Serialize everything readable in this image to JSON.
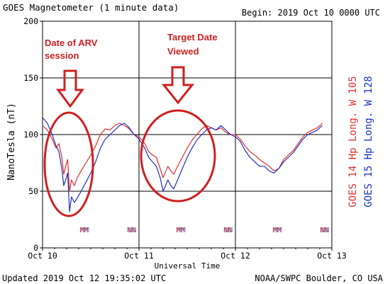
{
  "chart_data": {
    "type": "line",
    "title": "GOES Magnetometer (1 minute data)",
    "begin_label": "Begin:  2019 Oct 10 0000 UTC",
    "xlabel": "Universal Time",
    "ylabel": "NanoTesla (nT)",
    "ylim": [
      0,
      200
    ],
    "yticks": [
      0,
      50,
      100,
      150,
      200
    ],
    "xlim": [
      0,
      3
    ],
    "xticks": [
      {
        "value": 0,
        "label": "Oct 10"
      },
      {
        "value": 1,
        "label": "Oct 11"
      },
      {
        "value": 2,
        "label": "Oct 12"
      },
      {
        "value": 3,
        "label": "Oct 13"
      }
    ],
    "grid": true,
    "series": [
      {
        "name": "GOES 14 Hp  Long. W 105",
        "color": "#e03030",
        "x": [
          0.0,
          0.05,
          0.1,
          0.14,
          0.17,
          0.2,
          0.22,
          0.24,
          0.26,
          0.28,
          0.3,
          0.33,
          0.36,
          0.4,
          0.45,
          0.5,
          0.55,
          0.6,
          0.65,
          0.7,
          0.75,
          0.8,
          0.85,
          0.9,
          0.95,
          1.0,
          1.03,
          1.06,
          1.1,
          1.14,
          1.18,
          1.22,
          1.25,
          1.28,
          1.3,
          1.33,
          1.36,
          1.4,
          1.45,
          1.5,
          1.55,
          1.6,
          1.65,
          1.7,
          1.75,
          1.8,
          1.85,
          1.9,
          1.95,
          2.0,
          2.05,
          2.1,
          2.15,
          2.2,
          2.25,
          2.3,
          2.35,
          2.4,
          2.45,
          2.5,
          2.55,
          2.6,
          2.65,
          2.7,
          2.75,
          2.8,
          2.85,
          2.9
        ],
        "values": [
          108,
          104,
          96,
          88,
          92,
          80,
          65,
          72,
          78,
          50,
          60,
          55,
          62,
          68,
          75,
          82,
          90,
          100,
          105,
          104,
          108,
          110,
          108,
          105,
          100,
          98,
          95,
          92,
          85,
          82,
          80,
          70,
          62,
          68,
          72,
          68,
          65,
          72,
          80,
          88,
          95,
          100,
          105,
          108,
          106,
          104,
          106,
          102,
          100,
          100,
          96,
          90,
          85,
          82,
          78,
          75,
          72,
          68,
          70,
          78,
          82,
          86,
          92,
          98,
          102,
          104,
          106,
          110
        ]
      },
      {
        "name": "GOES 15 Hp  Long. W 128",
        "color": "#2030c0",
        "x": [
          0.0,
          0.05,
          0.1,
          0.14,
          0.17,
          0.2,
          0.22,
          0.24,
          0.26,
          0.28,
          0.3,
          0.33,
          0.36,
          0.4,
          0.45,
          0.5,
          0.55,
          0.6,
          0.65,
          0.7,
          0.75,
          0.8,
          0.85,
          0.9,
          0.95,
          1.0,
          1.03,
          1.06,
          1.1,
          1.14,
          1.18,
          1.22,
          1.25,
          1.28,
          1.3,
          1.33,
          1.36,
          1.4,
          1.45,
          1.5,
          1.55,
          1.6,
          1.65,
          1.7,
          1.75,
          1.8,
          1.85,
          1.9,
          1.95,
          2.0,
          2.05,
          2.1,
          2.15,
          2.2,
          2.25,
          2.3,
          2.35,
          2.4,
          2.45,
          2.5,
          2.55,
          2.6,
          2.65,
          2.7,
          2.75,
          2.8,
          2.85,
          2.9
        ],
        "values": [
          115,
          110,
          100,
          90,
          85,
          70,
          55,
          60,
          66,
          32,
          45,
          40,
          44,
          50,
          58,
          66,
          76,
          88,
          96,
          100,
          104,
          108,
          110,
          106,
          100,
          96,
          92,
          88,
          80,
          76,
          72,
          62,
          50,
          56,
          60,
          55,
          52,
          60,
          70,
          80,
          88,
          95,
          100,
          104,
          106,
          104,
          108,
          104,
          100,
          98,
          94,
          86,
          80,
          76,
          72,
          72,
          68,
          66,
          70,
          76,
          80,
          84,
          90,
          96,
          100,
          102,
          104,
          108
        ]
      }
    ],
    "markers": [
      {
        "x": 0.43,
        "label": "MM"
      },
      {
        "x": 0.92,
        "label": "NN"
      },
      {
        "x": 1.43,
        "label": "MM"
      },
      {
        "x": 1.92,
        "label": "NN"
      },
      {
        "x": 2.43,
        "label": "MM"
      },
      {
        "x": 2.92,
        "label": "NN"
      }
    ],
    "annotations": [
      {
        "text_lines": [
          "Date of ARV",
          "session"
        ]
      },
      {
        "text_lines": [
          "Target Date",
          "Viewed"
        ]
      }
    ]
  },
  "footer": {
    "updated": "Updated 2019 Oct 12 19:35:02 UTC",
    "source": "NOAA/SWPC Boulder, CO USA"
  },
  "colors": {
    "axis": "#000000",
    "grid": "#000000",
    "annotation": "#d02020",
    "marker_red": "#d03030",
    "marker_blue": "#2030b0"
  }
}
